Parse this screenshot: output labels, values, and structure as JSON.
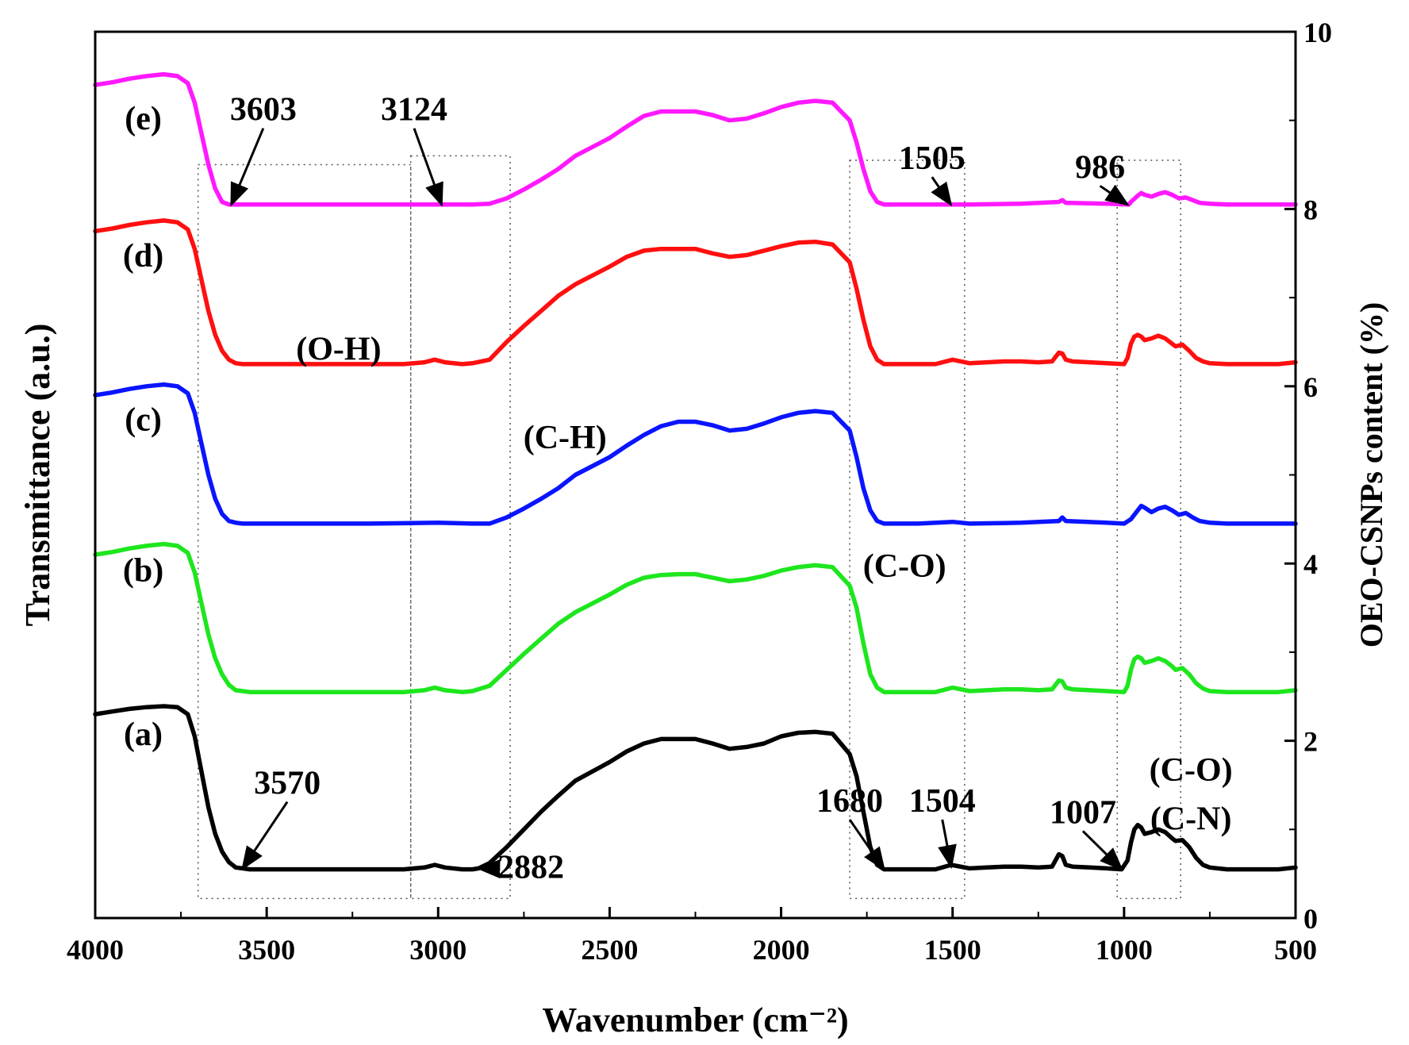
{
  "chart_data": {
    "type": "line",
    "title": "",
    "xlabel": "Wavenumber (cm⁻²)",
    "ylabel_left": "Transmittance (a.u.)",
    "ylabel_right": "OEO-CSNPs content (%)",
    "xlim": [
      4000,
      500
    ],
    "ylim_right": [
      0,
      10
    ],
    "x_ticks": [
      "4000",
      "3500",
      "3000",
      "2500",
      "2000",
      "1500",
      "1000",
      "500"
    ],
    "y_right_ticks": [
      "0",
      "2",
      "4",
      "6",
      "8",
      "10"
    ],
    "series": [
      {
        "name": "(a)",
        "color": "#000000",
        "base": 0.55,
        "x": [
          4000,
          3950,
          3900,
          3850,
          3800,
          3760,
          3730,
          3710,
          3690,
          3670,
          3650,
          3630,
          3610,
          3590,
          3570,
          3550,
          3400,
          3200,
          3100,
          3040,
          3010,
          2980,
          2930,
          2900,
          2882,
          2850,
          2800,
          2750,
          2700,
          2650,
          2600,
          2500,
          2450,
          2400,
          2350,
          2300,
          2250,
          2200,
          2150,
          2100,
          2050,
          2000,
          1950,
          1900,
          1850,
          1800,
          1780,
          1760,
          1740,
          1720,
          1700,
          1690,
          1680,
          1600,
          1550,
          1504,
          1450,
          1400,
          1350,
          1300,
          1250,
          1210,
          1190,
          1180,
          1170,
          1150,
          1100,
          1050,
          1007,
          990,
          980,
          970,
          960,
          950,
          940,
          920,
          900,
          880,
          860,
          850,
          830,
          810,
          790,
          770,
          750,
          700,
          650,
          600,
          550,
          500
        ],
        "y": [
          2.3,
          2.33,
          2.36,
          2.38,
          2.39,
          2.38,
          2.3,
          2.05,
          1.65,
          1.25,
          0.95,
          0.75,
          0.63,
          0.57,
          0.56,
          0.55,
          0.55,
          0.55,
          0.55,
          0.57,
          0.6,
          0.57,
          0.55,
          0.55,
          0.56,
          0.62,
          0.8,
          1.0,
          1.2,
          1.38,
          1.55,
          1.76,
          1.88,
          1.97,
          2.02,
          2.02,
          2.02,
          1.97,
          1.91,
          1.93,
          1.97,
          2.05,
          2.09,
          2.1,
          2.08,
          1.85,
          1.6,
          1.2,
          0.8,
          0.6,
          0.55,
          0.55,
          0.55,
          0.55,
          0.55,
          0.6,
          0.56,
          0.57,
          0.58,
          0.58,
          0.57,
          0.58,
          0.72,
          0.7,
          0.6,
          0.58,
          0.57,
          0.56,
          0.55,
          0.65,
          0.85,
          1.0,
          1.05,
          1.02,
          0.95,
          0.97,
          1.0,
          0.97,
          0.9,
          0.87,
          0.88,
          0.8,
          0.68,
          0.6,
          0.57,
          0.55,
          0.55,
          0.55,
          0.55,
          0.57
        ]
      },
      {
        "name": "(b)",
        "color": "#1ee61e",
        "base": 2.55,
        "x": [
          4000,
          3950,
          3900,
          3850,
          3800,
          3760,
          3730,
          3710,
          3690,
          3670,
          3650,
          3630,
          3610,
          3590,
          3570,
          3550,
          3400,
          3200,
          3100,
          3040,
          3010,
          2980,
          2930,
          2900,
          2850,
          2800,
          2750,
          2700,
          2650,
          2600,
          2500,
          2450,
          2400,
          2350,
          2300,
          2250,
          2200,
          2150,
          2100,
          2050,
          2000,
          1950,
          1900,
          1850,
          1800,
          1780,
          1760,
          1740,
          1720,
          1700,
          1680,
          1600,
          1550,
          1500,
          1450,
          1400,
          1350,
          1300,
          1250,
          1210,
          1190,
          1180,
          1170,
          1150,
          1100,
          1050,
          1000,
          990,
          980,
          970,
          960,
          950,
          940,
          920,
          900,
          880,
          860,
          850,
          830,
          810,
          790,
          770,
          750,
          700,
          650,
          600,
          550,
          500
        ],
        "y": [
          4.1,
          4.13,
          4.17,
          4.2,
          4.22,
          4.2,
          4.12,
          3.9,
          3.55,
          3.2,
          2.93,
          2.75,
          2.63,
          2.57,
          2.56,
          2.55,
          2.55,
          2.55,
          2.55,
          2.57,
          2.6,
          2.57,
          2.55,
          2.56,
          2.62,
          2.8,
          2.98,
          3.15,
          3.32,
          3.45,
          3.65,
          3.76,
          3.84,
          3.87,
          3.88,
          3.88,
          3.84,
          3.8,
          3.82,
          3.86,
          3.92,
          3.96,
          3.98,
          3.96,
          3.75,
          3.5,
          3.1,
          2.75,
          2.6,
          2.55,
          2.55,
          2.55,
          2.55,
          2.6,
          2.56,
          2.57,
          2.58,
          2.58,
          2.57,
          2.58,
          2.68,
          2.67,
          2.6,
          2.58,
          2.57,
          2.56,
          2.55,
          2.62,
          2.8,
          2.92,
          2.95,
          2.93,
          2.88,
          2.9,
          2.93,
          2.9,
          2.84,
          2.8,
          2.82,
          2.75,
          2.65,
          2.59,
          2.56,
          2.55,
          2.55,
          2.55,
          2.55,
          2.57
        ]
      },
      {
        "name": "(c)",
        "color": "#0a14ff",
        "base": 4.45,
        "x": [
          4000,
          3950,
          3900,
          3850,
          3800,
          3760,
          3730,
          3710,
          3690,
          3670,
          3650,
          3630,
          3610,
          3590,
          3570,
          3550,
          3400,
          3200,
          3000,
          2900,
          2850,
          2800,
          2750,
          2700,
          2650,
          2600,
          2500,
          2450,
          2400,
          2350,
          2300,
          2250,
          2200,
          2150,
          2100,
          2050,
          2000,
          1950,
          1900,
          1850,
          1800,
          1780,
          1760,
          1740,
          1720,
          1700,
          1680,
          1600,
          1500,
          1450,
          1300,
          1190,
          1180,
          1170,
          1050,
          1000,
          980,
          960,
          950,
          940,
          920,
          900,
          880,
          860,
          840,
          820,
          800,
          780,
          750,
          700,
          600,
          500
        ],
        "y": [
          5.9,
          5.93,
          5.97,
          6.0,
          6.02,
          6.0,
          5.92,
          5.7,
          5.35,
          5.0,
          4.73,
          4.56,
          4.48,
          4.46,
          4.45,
          4.45,
          4.45,
          4.45,
          4.46,
          4.45,
          4.45,
          4.52,
          4.62,
          4.73,
          4.85,
          5.0,
          5.2,
          5.33,
          5.45,
          5.55,
          5.6,
          5.6,
          5.56,
          5.5,
          5.52,
          5.58,
          5.65,
          5.7,
          5.72,
          5.7,
          5.5,
          5.2,
          4.85,
          4.6,
          4.48,
          4.45,
          4.45,
          4.45,
          4.47,
          4.45,
          4.46,
          4.48,
          4.52,
          4.48,
          4.46,
          4.45,
          4.5,
          4.6,
          4.65,
          4.63,
          4.58,
          4.62,
          4.64,
          4.6,
          4.55,
          4.57,
          4.52,
          4.48,
          4.46,
          4.45,
          4.45,
          4.45
        ]
      },
      {
        "name": "(d)",
        "color": "#ff0f0f",
        "base": 6.25,
        "x": [
          4000,
          3950,
          3900,
          3850,
          3800,
          3760,
          3730,
          3710,
          3690,
          3670,
          3650,
          3630,
          3610,
          3590,
          3570,
          3550,
          3400,
          3200,
          3100,
          3040,
          3010,
          2980,
          2930,
          2900,
          2850,
          2800,
          2750,
          2700,
          2650,
          2600,
          2500,
          2450,
          2400,
          2350,
          2300,
          2250,
          2200,
          2150,
          2100,
          2050,
          2000,
          1950,
          1900,
          1850,
          1800,
          1780,
          1760,
          1740,
          1720,
          1700,
          1680,
          1600,
          1550,
          1500,
          1450,
          1400,
          1350,
          1300,
          1250,
          1210,
          1190,
          1180,
          1170,
          1150,
          1100,
          1050,
          1000,
          990,
          980,
          970,
          960,
          950,
          940,
          920,
          900,
          880,
          860,
          850,
          830,
          810,
          790,
          770,
          750,
          700,
          650,
          600,
          550,
          500
        ],
        "y": [
          7.75,
          7.78,
          7.82,
          7.85,
          7.87,
          7.85,
          7.77,
          7.55,
          7.2,
          6.85,
          6.58,
          6.4,
          6.3,
          6.26,
          6.25,
          6.25,
          6.25,
          6.25,
          6.25,
          6.27,
          6.3,
          6.27,
          6.25,
          6.26,
          6.3,
          6.5,
          6.68,
          6.85,
          7.02,
          7.15,
          7.35,
          7.46,
          7.53,
          7.55,
          7.55,
          7.55,
          7.5,
          7.46,
          7.48,
          7.53,
          7.58,
          7.62,
          7.63,
          7.6,
          7.4,
          7.1,
          6.75,
          6.45,
          6.3,
          6.25,
          6.25,
          6.25,
          6.25,
          6.3,
          6.26,
          6.27,
          6.28,
          6.28,
          6.27,
          6.28,
          6.38,
          6.37,
          6.3,
          6.28,
          6.27,
          6.26,
          6.25,
          6.32,
          6.48,
          6.56,
          6.58,
          6.56,
          6.52,
          6.54,
          6.57,
          6.54,
          6.48,
          6.45,
          6.47,
          6.4,
          6.32,
          6.28,
          6.26,
          6.25,
          6.25,
          6.25,
          6.25,
          6.27
        ]
      },
      {
        "name": "(e)",
        "color": "#ff19ff",
        "base": 8.05,
        "x": [
          4000,
          3950,
          3900,
          3850,
          3800,
          3760,
          3730,
          3710,
          3690,
          3670,
          3650,
          3630,
          3610,
          3603,
          3550,
          3400,
          3200,
          3124,
          3000,
          2900,
          2850,
          2800,
          2750,
          2700,
          2650,
          2600,
          2500,
          2450,
          2400,
          2350,
          2300,
          2250,
          2200,
          2150,
          2100,
          2050,
          2000,
          1950,
          1900,
          1850,
          1800,
          1780,
          1760,
          1740,
          1720,
          1700,
          1680,
          1600,
          1505,
          1450,
          1300,
          1190,
          1180,
          1170,
          1050,
          986,
          980,
          960,
          950,
          940,
          920,
          900,
          880,
          860,
          840,
          820,
          800,
          780,
          750,
          700,
          600,
          500
        ],
        "y": [
          9.4,
          9.43,
          9.47,
          9.5,
          9.52,
          9.5,
          9.42,
          9.2,
          8.85,
          8.5,
          8.23,
          8.08,
          8.05,
          8.05,
          8.05,
          8.05,
          8.05,
          8.05,
          8.05,
          8.05,
          8.06,
          8.12,
          8.22,
          8.33,
          8.45,
          8.6,
          8.8,
          8.93,
          9.05,
          9.1,
          9.1,
          9.1,
          9.06,
          9.0,
          9.02,
          9.08,
          9.15,
          9.2,
          9.22,
          9.2,
          9.0,
          8.75,
          8.45,
          8.2,
          8.08,
          8.05,
          8.05,
          8.05,
          8.05,
          8.05,
          8.06,
          8.08,
          8.1,
          8.07,
          8.06,
          8.05,
          8.08,
          8.15,
          8.18,
          8.16,
          8.14,
          8.17,
          8.19,
          8.16,
          8.12,
          8.13,
          8.1,
          8.07,
          8.06,
          8.05,
          8.05,
          8.05
        ]
      }
    ],
    "curve_labels": [
      {
        "text": "(a)",
        "x": 3860,
        "y": 1.95
      },
      {
        "text": "(b)",
        "x": 3860,
        "y": 3.8
      },
      {
        "text": "(c)",
        "x": 3860,
        "y": 5.5
      },
      {
        "text": "(d)",
        "x": 3860,
        "y": 7.35
      },
      {
        "text": "(e)",
        "x": 3860,
        "y": 8.9
      }
    ],
    "bond_labels": [
      {
        "text": "(O-H)",
        "x": 3290,
        "y": 6.3
      },
      {
        "text": "(C-H)",
        "x": 2630,
        "y": 5.3
      },
      {
        "text": "(C-O)",
        "x": 1640,
        "y": 3.85
      },
      {
        "text": "(C-O)",
        "x": 805,
        "y": 1.55
      },
      {
        "text": "(C-N)",
        "x": 805,
        "y": 1.0
      }
    ],
    "peak_annotations": [
      {
        "text": "3603",
        "label_x": 3510,
        "label_y": 9.0,
        "target_x": 3603,
        "target_y": 8.05
      },
      {
        "text": "3124",
        "label_x": 3070,
        "label_y": 9.0,
        "target_x": 2990,
        "target_y": 8.05
      },
      {
        "text": "1505",
        "label_x": 1560,
        "label_y": 8.45,
        "target_x": 1505,
        "target_y": 8.05
      },
      {
        "text": "986",
        "label_x": 1070,
        "label_y": 8.35,
        "target_x": 990,
        "target_y": 8.05
      },
      {
        "text": "3570",
        "label_x": 3440,
        "label_y": 1.4,
        "target_x": 3570,
        "target_y": 0.56
      },
      {
        "text": "2882",
        "label_x": 2730,
        "label_y": 0.45,
        "target_x": 2882,
        "target_y": 0.56
      },
      {
        "text": "1680",
        "label_x": 1800,
        "label_y": 1.2,
        "target_x": 1700,
        "target_y": 0.55
      },
      {
        "text": "1504",
        "label_x": 1530,
        "label_y": 1.2,
        "target_x": 1504,
        "target_y": 0.58
      },
      {
        "text": "1007",
        "label_x": 1120,
        "label_y": 1.07,
        "target_x": 1007,
        "target_y": 0.55
      }
    ],
    "dotted_regions": [
      {
        "x1": 3700,
        "x2": 3080,
        "y1": 0.22,
        "y2": 8.5
      },
      {
        "x1": 3080,
        "x2": 2790,
        "y1": 0.22,
        "y2": 8.6
      },
      {
        "x1": 1800,
        "x2": 1465,
        "y1": 0.22,
        "y2": 8.55
      },
      {
        "x1": 1020,
        "x2": 835,
        "y1": 0.22,
        "y2": 8.55
      }
    ]
  }
}
